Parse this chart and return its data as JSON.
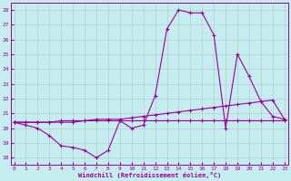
{
  "x_ticks": [
    0,
    1,
    2,
    3,
    4,
    5,
    6,
    7,
    8,
    9,
    10,
    11,
    12,
    13,
    14,
    15,
    16,
    17,
    18,
    19,
    20,
    21,
    22,
    23
  ],
  "ylim": [
    17.5,
    28.5
  ],
  "xlim": [
    -0.3,
    23.3
  ],
  "yticks": [
    18,
    19,
    20,
    21,
    22,
    23,
    24,
    25,
    26,
    27,
    28
  ],
  "xlabel": "Windchill (Refroidissement éolien,°C)",
  "bg_color": "#c5ecee",
  "line_color": "#990099",
  "grid_color": "#b0c8c8",
  "series1_x": [
    0,
    1,
    2,
    3,
    4,
    5,
    6,
    7,
    8,
    9,
    10,
    11,
    12,
    13,
    14,
    15,
    16,
    17,
    18,
    19,
    20,
    21,
    22,
    23
  ],
  "series1_y": [
    20.4,
    20.2,
    20.0,
    19.5,
    18.8,
    18.7,
    18.5,
    18.0,
    18.5,
    20.5,
    20.0,
    20.2,
    22.2,
    26.7,
    28.0,
    27.8,
    27.8,
    26.3,
    20.0,
    25.0,
    23.5,
    21.8,
    20.8,
    20.6
  ],
  "series2_x": [
    0,
    1,
    2,
    3,
    4,
    5,
    6,
    7,
    8,
    9,
    10,
    11,
    12,
    13,
    14,
    15,
    16,
    17,
    18,
    19,
    20,
    21,
    22,
    23
  ],
  "series2_y": [
    20.4,
    20.4,
    20.4,
    20.4,
    20.4,
    20.4,
    20.5,
    20.5,
    20.5,
    20.5,
    20.5,
    20.5,
    20.5,
    20.5,
    20.5,
    20.5,
    20.5,
    20.5,
    20.5,
    20.5,
    20.5,
    20.5,
    20.5,
    20.5
  ],
  "series3_x": [
    0,
    1,
    2,
    3,
    4,
    5,
    6,
    7,
    8,
    9,
    10,
    11,
    12,
    13,
    14,
    15,
    16,
    17,
    18,
    19,
    20,
    21,
    22,
    23
  ],
  "series3_y": [
    20.4,
    20.4,
    20.4,
    20.4,
    20.5,
    20.5,
    20.5,
    20.6,
    20.6,
    20.6,
    20.7,
    20.8,
    20.9,
    21.0,
    21.1,
    21.2,
    21.3,
    21.4,
    21.5,
    21.6,
    21.7,
    21.8,
    21.9,
    20.6
  ]
}
